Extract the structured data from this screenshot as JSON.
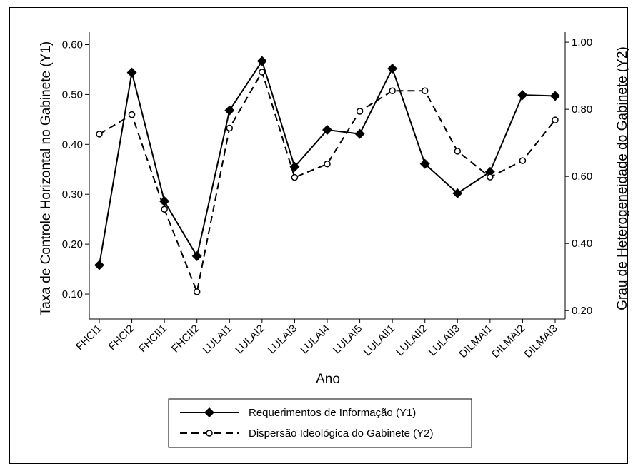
{
  "chart_data": {
    "type": "line",
    "categories": [
      "FHCI1",
      "FHCI2",
      "FHCII1",
      "FHCII2",
      "LULAI1",
      "LULAI2",
      "LULAI3",
      "LULAI4",
      "LULAI5",
      "LULAII1",
      "LULAII2",
      "LULAII3",
      "DILMAI1",
      "DILMAI2",
      "DILMAI3"
    ],
    "xlabel": "Ano",
    "ylabel_left": "Taxa de Controle Horizontal no Gabinete  (Y1)",
    "ylabel_right": "Grau de Heterogeneidade do Gabinete (Y2)",
    "y1_ticks": [
      "0.10",
      "0.20",
      "0.30",
      "0.40",
      "0.50",
      "0.60"
    ],
    "y2_ticks": [
      "0.20",
      "0.40",
      "0.60",
      "0.80",
      "1.00"
    ],
    "y1_lim": [
      0.05,
      0.625
    ],
    "y2_lim": [
      0.175,
      1.03
    ],
    "grid": false,
    "legend_position": "bottom",
    "series": [
      {
        "name": "Requerimentos de Informação (Y1)",
        "axis": "left",
        "style": "solid",
        "marker": "diamond",
        "values": [
          0.158,
          0.544,
          0.286,
          0.176,
          0.468,
          0.567,
          0.355,
          0.429,
          0.421,
          0.552,
          0.361,
          0.302,
          0.345,
          0.499,
          0.497
        ]
      },
      {
        "name": "Dispersão Ideológica do Gabinete (Y2)",
        "axis": "right",
        "style": "dashed",
        "marker": "circle",
        "values": [
          0.726,
          0.784,
          0.502,
          0.256,
          0.744,
          0.911,
          0.597,
          0.637,
          0.794,
          0.855,
          0.855,
          0.675,
          0.598,
          0.647,
          0.768
        ]
      }
    ]
  }
}
